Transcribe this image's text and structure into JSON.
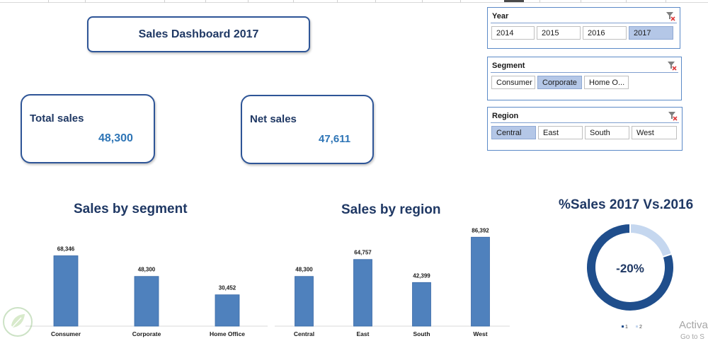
{
  "dashboard": {
    "title": "Sales Dashboard 2017"
  },
  "kpis": {
    "total_sales": {
      "label": "Total sales",
      "value": "48,300"
    },
    "net_sales": {
      "label": "Net sales",
      "value": "47,611"
    }
  },
  "slicers": {
    "year": {
      "title": "Year",
      "items": [
        "2014",
        "2015",
        "2016",
        "2017"
      ],
      "selected": "2017"
    },
    "segment": {
      "title": "Segment",
      "items": [
        "Consumer",
        "Corporate",
        "Home O..."
      ],
      "selected": "Corporate"
    },
    "region": {
      "title": "Region",
      "items": [
        "Central",
        "East",
        "South",
        "West"
      ],
      "selected": "Central"
    }
  },
  "chart_data": [
    {
      "type": "bar",
      "title": "Sales by segment",
      "categories": [
        "Consumer",
        "Corporate",
        "Home Office"
      ],
      "values": [
        68346,
        48300,
        30452
      ],
      "data_labels": [
        "68,346",
        "48,300",
        "30,452"
      ],
      "ylim": [
        0,
        90000
      ],
      "grid": false,
      "color": "#4f81bd"
    },
    {
      "type": "bar",
      "title": "Sales by region",
      "categories": [
        "Central",
        "East",
        "South",
        "West"
      ],
      "values": [
        48300,
        64757,
        42399,
        86392
      ],
      "data_labels": [
        "48,300",
        "64,757",
        "42,399",
        "86,392"
      ],
      "ylim": [
        0,
        90000
      ],
      "grid": false,
      "color": "#4f81bd"
    },
    {
      "type": "pie",
      "title": "%Sales 2017 Vs.2016",
      "center_label": "-20%",
      "slices": [
        {
          "name": "1",
          "value": 80,
          "color": "#1f4e8c"
        },
        {
          "name": "2",
          "value": 20,
          "color": "#c5d7ef"
        }
      ],
      "legend": [
        "1",
        "2"
      ],
      "legend_placement": "bottom"
    }
  ],
  "watermark": {
    "line1": "Activa",
    "line2": "Go to S"
  }
}
